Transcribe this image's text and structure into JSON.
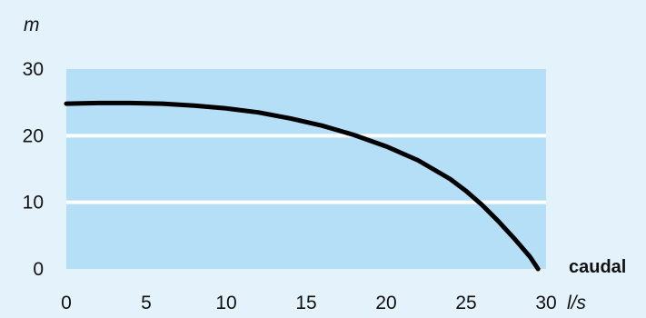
{
  "chart_data": {
    "type": "line",
    "title": "",
    "xlabel": "caudal",
    "x_unit": "l/s",
    "y_unit": "m",
    "xlim": [
      0,
      30
    ],
    "ylim": [
      0,
      30
    ],
    "x_ticks": [
      0,
      5,
      10,
      15,
      20,
      25,
      30
    ],
    "y_ticks": [
      0,
      10,
      20,
      30
    ],
    "grid": "horizontal",
    "series": [
      {
        "x": [
          0,
          2,
          4,
          6,
          8,
          10,
          12,
          14,
          16,
          18,
          20,
          22,
          24,
          25,
          26,
          27,
          28,
          29,
          29.5
        ],
        "y": [
          24.8,
          24.9,
          24.9,
          24.8,
          24.5,
          24.1,
          23.5,
          22.6,
          21.5,
          20.1,
          18.4,
          16.3,
          13.5,
          11.7,
          9.6,
          7.2,
          4.6,
          1.8,
          0
        ]
      }
    ],
    "colors": {
      "background": "#e3f2fb",
      "plot_band": "#b5dff7",
      "grid": "#ffffff",
      "line": "#000000"
    }
  }
}
